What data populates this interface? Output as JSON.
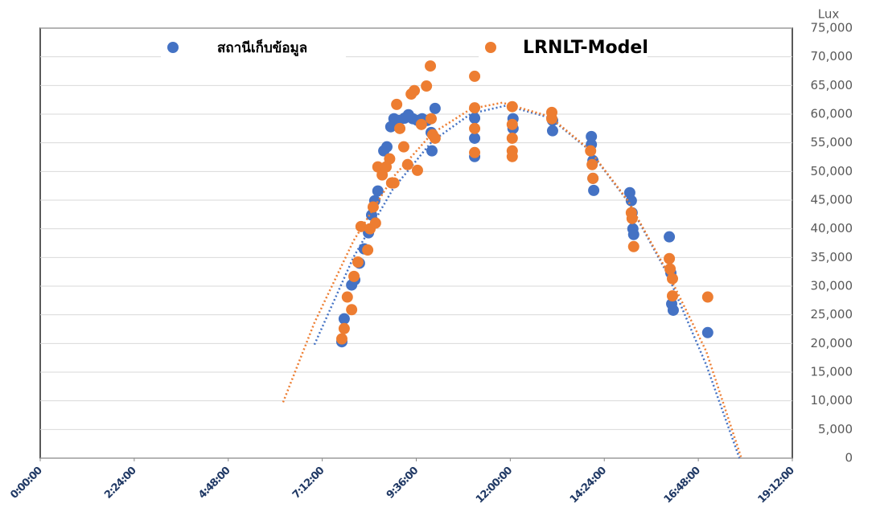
{
  "chart_data": {
    "type": "scatter",
    "y_axis_label": "Lux",
    "legend": "top",
    "grid": true,
    "marker_size": 7,
    "xlim": [
      0,
      19.2
    ],
    "xticks": [
      {
        "value": 0,
        "label": "0:00:00"
      },
      {
        "value": 2.4,
        "label": "2:24:00"
      },
      {
        "value": 4.8,
        "label": "4:48:00"
      },
      {
        "value": 7.2,
        "label": "7:12:00"
      },
      {
        "value": 9.6,
        "label": "9:36:00"
      },
      {
        "value": 12,
        "label": "12:00:00"
      },
      {
        "value": 14.4,
        "label": "14:24:00"
      },
      {
        "value": 16.8,
        "label": "16:48:00"
      },
      {
        "value": 19.2,
        "label": "19:12:00"
      }
    ],
    "ylim": [
      0,
      75000
    ],
    "yticks": [
      0,
      {
        "value": 5000,
        "label": "5,000"
      },
      {
        "value": 10000,
        "label": "10,000"
      },
      {
        "value": 15000,
        "label": "15,000"
      },
      {
        "value": 20000,
        "label": "20,000"
      },
      {
        "value": 25000,
        "label": "25,000"
      },
      {
        "value": 30000,
        "label": "30,000"
      },
      {
        "value": 35000,
        "label": "35,000"
      },
      {
        "value": 40000,
        "label": "40,000"
      },
      {
        "value": 45000,
        "label": "45,000"
      },
      {
        "value": 50000,
        "label": "50,000"
      },
      {
        "value": 55000,
        "label": "55,000"
      },
      {
        "value": 60000,
        "label": "60,000"
      },
      {
        "value": 65000,
        "label": "65,000"
      },
      {
        "value": 70000,
        "label": "70,000"
      },
      {
        "value": 75000,
        "label": "75,000"
      }
    ],
    "series": [
      {
        "name": "สถานีเก็บข้อมูล",
        "color": "#4472c4",
        "x": [
          7.7,
          7.76,
          7.95,
          8.03,
          8.15,
          8.27,
          8.38,
          8.46,
          8.54,
          8.62,
          8.77,
          8.85,
          8.95,
          9.03,
          9.16,
          9.3,
          9.4,
          9.51,
          9.63,
          9.75,
          9.88,
          9.98,
          10.0,
          10.08,
          11.09,
          11.09,
          11.09,
          12.07,
          12.07,
          13.08,
          13.08,
          14.07,
          14.07,
          14.11,
          14.11,
          14.13,
          15.05,
          15.09,
          15.11,
          15.13,
          15.15,
          16.06,
          16.1,
          16.12,
          16.16,
          17.04
        ],
        "values": [
          20300,
          24300,
          30200,
          31100,
          34000,
          36500,
          39300,
          42400,
          44900,
          46600,
          53600,
          54300,
          57800,
          59200,
          58900,
          59300,
          59900,
          59200,
          58900,
          59200,
          58900,
          56800,
          53600,
          61000,
          52600,
          55800,
          59300,
          57500,
          59200,
          57100,
          58900,
          56100,
          54700,
          51900,
          48800,
          46700,
          46300,
          44900,
          42800,
          40000,
          39000,
          38600,
          32300,
          26900,
          25800,
          21900
        ],
        "trendline": {
          "x": [
            7,
            8,
            9,
            10,
            11,
            11.9,
            13,
            14,
            15,
            16,
            17,
            17.85
          ],
          "values": [
            19800,
            35080,
            46890,
            55230,
            60090,
            61500,
            59400,
            53840,
            44810,
            32300,
            16320,
            0
          ]
        }
      },
      {
        "name": "LRNLT-Model",
        "color": "#ed7d31",
        "x": [
          7.7,
          7.76,
          7.84,
          7.95,
          8.01,
          8.11,
          8.19,
          8.36,
          8.42,
          8.5,
          8.56,
          8.62,
          8.73,
          8.83,
          8.92,
          8.97,
          9.03,
          9.1,
          9.18,
          9.28,
          9.38,
          9.47,
          9.55,
          9.63,
          9.73,
          9.86,
          9.96,
          9.98,
          10.02,
          10.08,
          11.09,
          11.09,
          11.09,
          11.09,
          12.05,
          12.05,
          12.05,
          12.05,
          12.05,
          13.06,
          13.06,
          14.05,
          14.09,
          14.11,
          15.09,
          15.11,
          15.15,
          16.06,
          16.08,
          16.14,
          16.14,
          17.04
        ],
        "values": [
          20800,
          22600,
          28100,
          25900,
          31700,
          34200,
          40400,
          36300,
          40000,
          43800,
          41000,
          50800,
          49400,
          50800,
          52200,
          48000,
          48000,
          61700,
          57500,
          54300,
          51200,
          63500,
          64100,
          50200,
          58200,
          64900,
          68400,
          59200,
          56400,
          55800,
          66600,
          61100,
          57500,
          53300,
          61300,
          58200,
          55800,
          53600,
          52600,
          60300,
          59200,
          53600,
          51200,
          48800,
          42800,
          41800,
          36900,
          34800,
          33000,
          31300,
          28300,
          28100
        ],
        "trendline": {
          "x": [
            6.2,
            7,
            8,
            9,
            10,
            11,
            11.8,
            13,
            14,
            15,
            16,
            17,
            17.9
          ],
          "values": [
            9750,
            23620,
            37940,
            48940,
            56600,
            60930,
            62000,
            59600,
            53940,
            44940,
            32610,
            18670,
            0
          ]
        }
      }
    ]
  }
}
